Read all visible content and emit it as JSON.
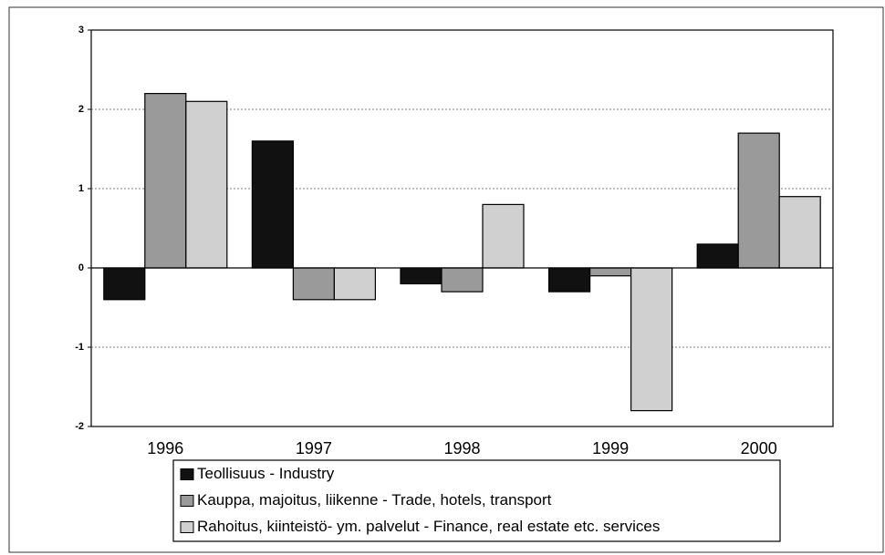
{
  "chart_data": {
    "type": "bar",
    "categories": [
      "1996",
      "1997",
      "1998",
      "1999",
      "2000"
    ],
    "series": [
      {
        "name": "Teollisuus - Industry",
        "color": "#111111",
        "values": [
          -0.4,
          1.6,
          -0.2,
          -0.3,
          0.3
        ]
      },
      {
        "name": "Kauppa, majoitus, liikenne - Trade, hotels, transport",
        "color": "#9a9a9a",
        "values": [
          2.2,
          -0.4,
          -0.3,
          -0.1,
          1.7
        ]
      },
      {
        "name": "Rahoitus, kiinteistö- ym. palvelut - Finance, real estate etc. services",
        "color": "#d0d0d0",
        "values": [
          2.1,
          -0.4,
          0.8,
          -1.8,
          0.9
        ]
      }
    ],
    "ylim": [
      -2,
      3
    ],
    "yticks": [
      -2,
      -1,
      0,
      1,
      2,
      3
    ],
    "grid": true,
    "legend": "bottom"
  }
}
